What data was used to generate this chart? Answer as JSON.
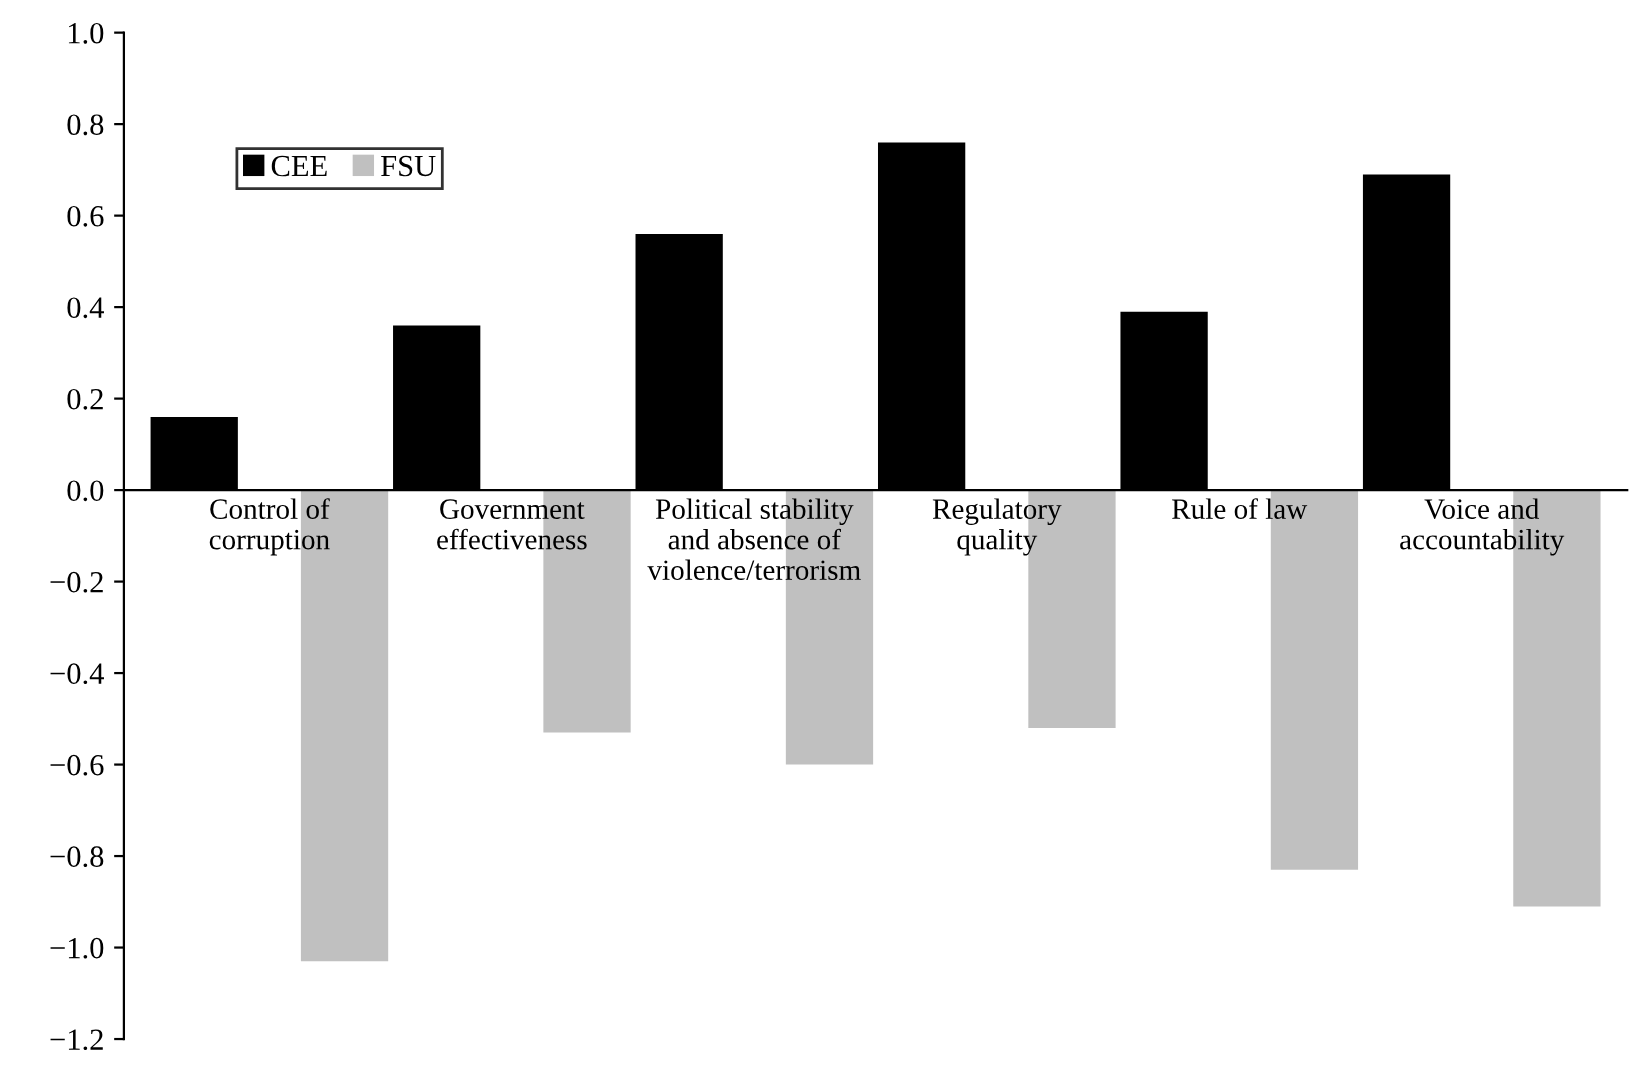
{
  "chart_data": {
    "type": "bar",
    "categories": [
      "Control of\ncorruption",
      "Government\neffectiveness",
      "Political stability\nand absence of\nviolence/terrorism",
      "Regulatory\nquality",
      "Rule of law",
      "Voice and\naccountability"
    ],
    "series": [
      {
        "name": "CEE",
        "color": "#000000",
        "values": [
          0.16,
          0.36,
          0.56,
          0.76,
          0.39,
          0.69
        ]
      },
      {
        "name": "FSU",
        "color": "#c0c0c0",
        "values": [
          -1.03,
          -0.53,
          -0.6,
          -0.52,
          -0.83,
          -0.91
        ]
      }
    ],
    "ylim": [
      -1.2,
      1.0
    ],
    "yticks": [
      {
        "value": -1.2,
        "label": "−1.2"
      },
      {
        "value": -1.0,
        "label": "−1.0"
      },
      {
        "value": -0.8,
        "label": "−0.8"
      },
      {
        "value": -0.6,
        "label": "−0.6"
      },
      {
        "value": -0.4,
        "label": "−0.4"
      },
      {
        "value": -0.2,
        "label": "−0.2"
      },
      {
        "value": 0.0,
        "label": "0.0"
      },
      {
        "value": 0.2,
        "label": "0.2"
      },
      {
        "value": 0.4,
        "label": "0.4"
      },
      {
        "value": 0.6,
        "label": "0.6"
      },
      {
        "value": 0.8,
        "label": "0.8"
      },
      {
        "value": 1.0,
        "label": "1.0"
      }
    ],
    "grid": false,
    "legend": "top left"
  }
}
